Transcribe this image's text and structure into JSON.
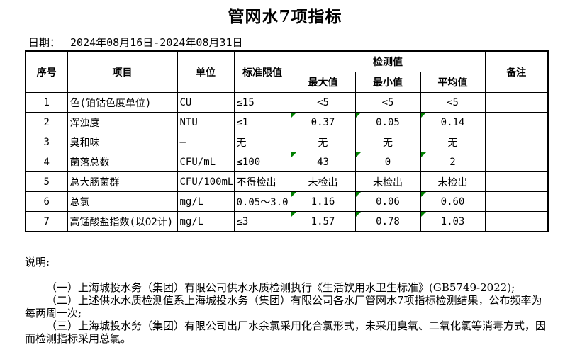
{
  "title": "管网水7项指标",
  "date": {
    "label": "日期：",
    "value": "2024年08月16日-2024年08月31日"
  },
  "table": {
    "headers": {
      "seq": "序号",
      "item": "项目",
      "unit": "单位",
      "limit": "标准限值",
      "detection": "检测值",
      "max": "最大值",
      "min": "最小值",
      "avg": "平均值",
      "remark": "备注"
    },
    "rows": [
      {
        "seq": "1",
        "item": "色(铂钴色度单位)",
        "unit": "CU",
        "limit": "≤15",
        "max": "<5",
        "min": "<5",
        "avg": "<5",
        "remark": "",
        "flagged": false
      },
      {
        "seq": "2",
        "item": "浑浊度",
        "unit": "NTU",
        "limit": "≤1",
        "max": "0.37",
        "min": "0.05",
        "avg": "0.14",
        "remark": "",
        "flagged": true
      },
      {
        "seq": "3",
        "item": "臭和味",
        "unit": "—",
        "limit": "无",
        "max": "无",
        "min": "无",
        "avg": "无",
        "remark": "",
        "flagged": false
      },
      {
        "seq": "4",
        "item": "菌落总数",
        "unit": "CFU/mL",
        "limit": "≤100",
        "max": "43",
        "min": "0",
        "avg": "2",
        "remark": "",
        "flagged": true
      },
      {
        "seq": "5",
        "item": "总大肠菌群",
        "unit": "CFU/100mL",
        "limit": "不得检出",
        "max": "未检出",
        "min": "未检出",
        "avg": "未检出",
        "remark": "",
        "flagged": false
      },
      {
        "seq": "6",
        "item": "总氯",
        "unit": "mg/L",
        "limit": "0.05～3.0",
        "max": "1.16",
        "min": "0.06",
        "avg": "0.60",
        "remark": "",
        "flagged": true
      },
      {
        "seq": "7",
        "item": "高锰酸盐指数(以O2计)",
        "unit": "mg/L",
        "limit": "≤3",
        "max": "1.57",
        "min": "0.78",
        "avg": "1.03",
        "remark": "",
        "flagged": true
      }
    ]
  },
  "notes": {
    "heading": "说明:",
    "items": [
      "（一）上海城投水务（集团）有限公司供水水质检测执行《生活饮用水卫生标准》(GB5749-2022);",
      "（二）上述供水水质检测值系上海城投水务（集团）有限公司各水厂管网水7项指标检测结果，公布频率为每两周一次;",
      "（三）上海城投水务（集团）有限公司出厂水余氯采用化合氯形式，未采用臭氧、二氧化氯等消毒方式，因而检测指标采用总氯。"
    ]
  },
  "colors": {
    "flag_triangle": "#008000",
    "border": "#000000",
    "text": "#000000",
    "background": "#ffffff"
  }
}
